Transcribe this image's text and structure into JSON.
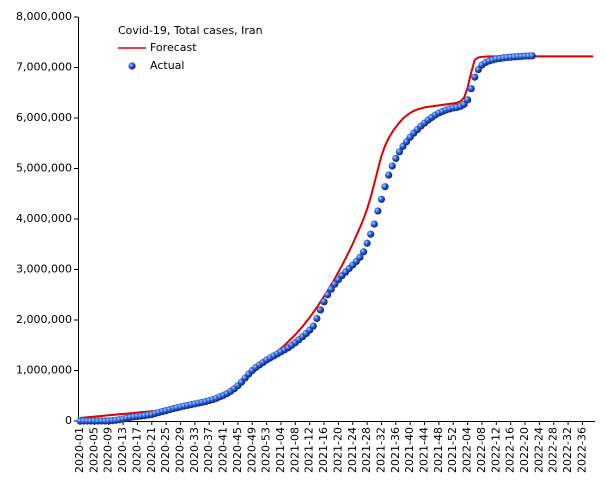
{
  "chart_data": {
    "type": "line",
    "title": "Covid-19, Total cases, Iran",
    "categories": [
      "2020-01",
      null,
      null,
      null,
      "2020-05",
      null,
      null,
      null,
      "2020-09",
      null,
      null,
      null,
      "2020-13",
      null,
      null,
      null,
      "2020-17",
      null,
      null,
      null,
      "2020-21",
      null,
      null,
      null,
      "2020-25",
      null,
      null,
      null,
      "2020-29",
      null,
      null,
      null,
      "2020-33",
      null,
      null,
      null,
      "2020-37",
      null,
      null,
      null,
      "2020-41",
      null,
      null,
      null,
      "2020-45",
      null,
      null,
      null,
      "2020-49",
      null,
      null,
      null,
      "2020-53",
      null,
      null,
      null,
      "2021-04",
      null,
      null,
      null,
      "2021-08",
      null,
      null,
      null,
      "2021-12",
      null,
      null,
      null,
      "2021-16",
      null,
      null,
      null,
      "2021-20",
      null,
      null,
      null,
      "2021-24",
      null,
      null,
      null,
      "2021-28",
      null,
      null,
      null,
      "2021-32",
      null,
      null,
      null,
      "2021-36",
      null,
      null,
      null,
      "2021-40",
      null,
      null,
      null,
      "2021-44",
      null,
      null,
      null,
      "2021-48",
      null,
      null,
      null,
      "2021-52",
      null,
      null,
      null,
      "2022-04",
      null,
      null,
      null,
      "2022-08",
      null,
      null,
      null,
      "2022-12",
      null,
      null,
      null,
      "2022-16",
      null,
      null,
      null,
      "2022-20",
      null,
      null,
      null,
      "2022-24",
      null,
      null,
      null,
      "2022-28",
      null,
      null,
      null,
      "2022-32",
      null,
      null,
      null,
      "2022-36",
      null,
      null,
      null
    ],
    "series": [
      {
        "name": "Forecast",
        "mark": "line",
        "color": "#dd0000",
        "values": [
          60000,
          67000,
          74000,
          80000,
          87000,
          94000,
          100000,
          107000,
          113000,
          120000,
          127000,
          133000,
          140000,
          147000,
          153000,
          160000,
          167000,
          173000,
          180000,
          187000,
          193000,
          200000,
          207000,
          213000,
          220000,
          230000,
          240000,
          250000,
          262000,
          274000,
          287000,
          300000,
          315000,
          330000,
          345000,
          362000,
          380000,
          400000,
          422000,
          447000,
          475000,
          510000,
          550000,
          600000,
          660000,
          730000,
          810000,
          880000,
          950000,
          1020000,
          1080000,
          1140000,
          1200000,
          1260000,
          1320000,
          1380000,
          1440000,
          1500000,
          1570000,
          1640000,
          1710000,
          1790000,
          1870000,
          1960000,
          2050000,
          2150000,
          2250000,
          2360000,
          2470000,
          2580000,
          2700000,
          2820000,
          2950000,
          3080000,
          3220000,
          3360000,
          3510000,
          3670000,
          3830000,
          4000000,
          4200000,
          4430000,
          4700000,
          4980000,
          5250000,
          5450000,
          5600000,
          5720000,
          5820000,
          5910000,
          5990000,
          6050000,
          6100000,
          6140000,
          6170000,
          6190000,
          6210000,
          6220000,
          6230000,
          6240000,
          6250000,
          6260000,
          6270000,
          6280000,
          6290000,
          6300000,
          6330000,
          6400000,
          6600000,
          6900000,
          7150000,
          7200000,
          7210000,
          7215000,
          7220000,
          7220000,
          7220000,
          7220000,
          7220000,
          7220000,
          7220000,
          7220000,
          7220000,
          7220000,
          7220000,
          7220000,
          7220000,
          7220000,
          7220000,
          7220000,
          7220000,
          7220000,
          7220000,
          7220000,
          7220000,
          7220000,
          7220000,
          7220000,
          7220000,
          7220000,
          7220000,
          7220000,
          7220000,
          7220000
        ]
      },
      {
        "name": "Actual",
        "mark": "marker",
        "color": "#1a3fbf",
        "values": [
          0,
          0,
          0,
          0,
          0,
          0,
          0,
          0,
          1000,
          8000,
          15000,
          25000,
          40000,
          58000,
          72000,
          82000,
          92000,
          98000,
          107000,
          118000,
          130000,
          150000,
          170000,
          190000,
          205000,
          225000,
          245000,
          262000,
          280000,
          295000,
          310000,
          325000,
          340000,
          355000,
          370000,
          385000,
          405000,
          425000,
          450000,
          480000,
          510000,
          545000,
          590000,
          640000,
          700000,
          770000,
          850000,
          930000,
          1000000,
          1060000,
          1110000,
          1160000,
          1210000,
          1250000,
          1290000,
          1330000,
          1370000,
          1410000,
          1450000,
          1500000,
          1550000,
          1610000,
          1670000,
          1730000,
          1800000,
          1880000,
          2030000,
          2200000,
          2360000,
          2500000,
          2610000,
          2710000,
          2800000,
          2880000,
          2950000,
          3020000,
          3090000,
          3160000,
          3240000,
          3350000,
          3520000,
          3700000,
          3900000,
          4160000,
          4390000,
          4640000,
          4870000,
          5050000,
          5200000,
          5330000,
          5440000,
          5530000,
          5620000,
          5700000,
          5770000,
          5840000,
          5900000,
          5960000,
          6010000,
          6060000,
          6100000,
          6130000,
          6160000,
          6180000,
          6200000,
          6210000,
          6230000,
          6270000,
          6360000,
          6580000,
          6810000,
          6960000,
          7050000,
          7100000,
          7130000,
          7150000,
          7170000,
          7180000,
          7190000,
          7200000,
          7205000,
          7210000,
          7215000,
          7220000,
          7225000,
          7228000,
          7230000,
          null,
          null,
          null,
          null,
          null,
          null,
          null,
          null,
          null,
          null,
          null,
          null,
          null,
          null,
          null,
          null,
          null
        ]
      }
    ],
    "ylim": [
      0,
      8000000
    ],
    "yticks": [
      0,
      {
        "value": 1000000,
        "label": "1,000,000"
      },
      {
        "value": 2000000,
        "label": "2,000,000"
      },
      {
        "value": 3000000,
        "label": "3,000,000"
      },
      {
        "value": 4000000,
        "label": "4,000,000"
      },
      {
        "value": 5000000,
        "label": "5,000,000"
      },
      {
        "value": 6000000,
        "label": "6,000,000"
      },
      {
        "value": 7000000,
        "label": "7,000,000"
      },
      {
        "value": 8000000,
        "label": "8,000,000"
      }
    ],
    "grid": false,
    "legend": "top-left"
  }
}
